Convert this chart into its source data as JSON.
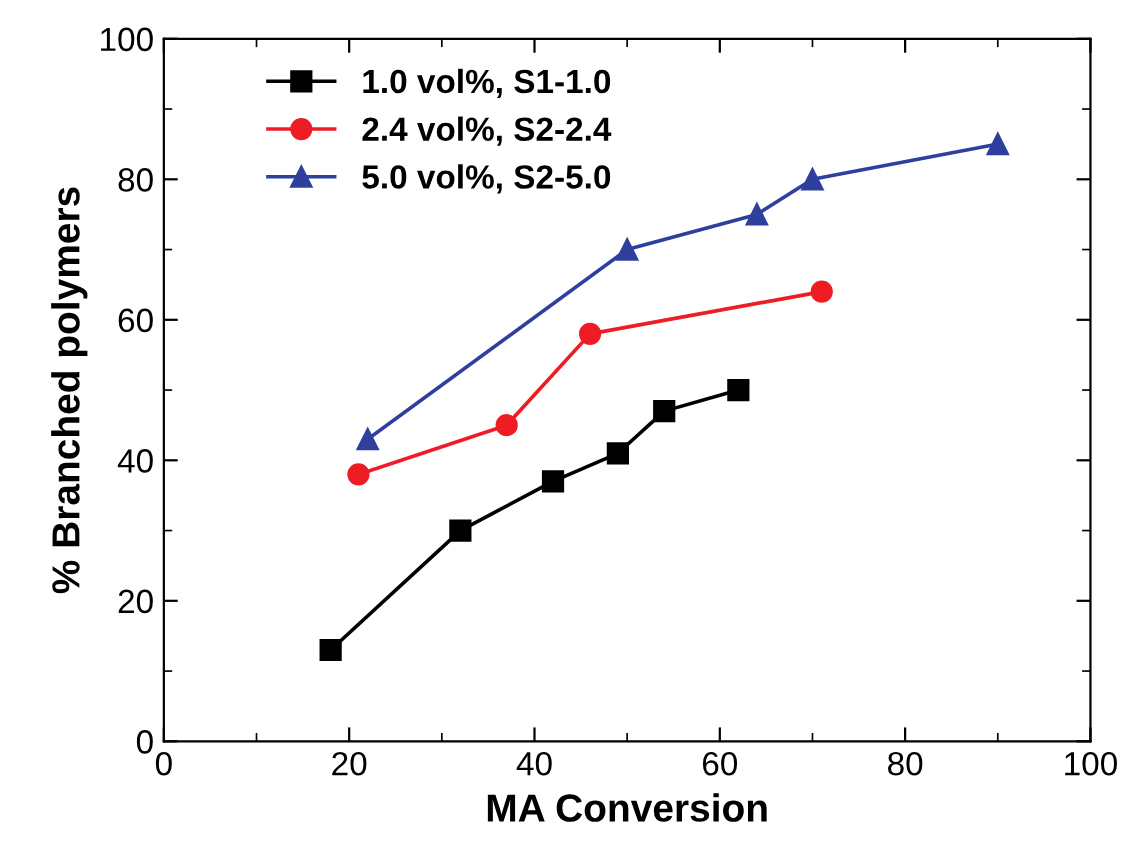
{
  "chart_data": {
    "type": "line",
    "xlabel": "MA Conversion",
    "ylabel": "% Branched polymers",
    "xlim": [
      0,
      100
    ],
    "ylim": [
      0,
      100
    ],
    "xticks": [
      0,
      20,
      40,
      60,
      80,
      100
    ],
    "yticks": [
      0,
      20,
      40,
      60,
      80,
      100
    ],
    "grid": false,
    "legend": "top left",
    "series": [
      {
        "name": "1.0 vol%, S1-1.0",
        "color": "#000000",
        "marker": "square",
        "x": [
          18,
          32,
          42,
          49,
          54,
          62
        ],
        "values": [
          13,
          30,
          37,
          41,
          47,
          50
        ]
      },
      {
        "name": "2.4 vol%, S2-2.4",
        "color": "#ee1c24",
        "marker": "circle",
        "x": [
          21,
          37,
          46,
          71
        ],
        "values": [
          38,
          45,
          58,
          64
        ]
      },
      {
        "name": "5.0 vol%, S2-5.0",
        "color": "#2e3f9e",
        "marker": "triangle",
        "x": [
          22,
          50,
          64,
          70,
          90
        ],
        "values": [
          43,
          70,
          75,
          80,
          85
        ]
      }
    ]
  }
}
